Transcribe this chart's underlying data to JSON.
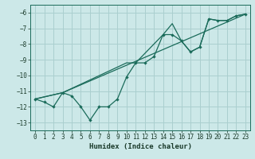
{
  "title": "",
  "xlabel": "Humidex (Indice chaleur)",
  "bg_color": "#cce8e8",
  "grid_color": "#aacfcf",
  "line_color": "#1a6b5a",
  "xlim": [
    -0.5,
    23.5
  ],
  "ylim": [
    -13.5,
    -5.5
  ],
  "xticks": [
    0,
    1,
    2,
    3,
    4,
    5,
    6,
    7,
    8,
    9,
    10,
    11,
    12,
    13,
    14,
    15,
    16,
    17,
    18,
    19,
    20,
    21,
    22,
    23
  ],
  "yticks": [
    -13,
    -12,
    -11,
    -10,
    -9,
    -8,
    -7,
    -6
  ],
  "line1_x": [
    0,
    1,
    2,
    3,
    4,
    5,
    6,
    7,
    8,
    9,
    10,
    11,
    12,
    13,
    14,
    15,
    16,
    17,
    18,
    19,
    20,
    21,
    22,
    23
  ],
  "line1_y": [
    -11.5,
    -11.7,
    -12.0,
    -11.1,
    -11.3,
    -12.0,
    -12.85,
    -12.0,
    -12.0,
    -11.5,
    -10.1,
    -9.2,
    -9.2,
    -8.8,
    -7.4,
    -7.4,
    -7.8,
    -8.5,
    -8.2,
    -6.4,
    -6.5,
    -6.5,
    -6.2,
    -6.1
  ],
  "line2_x": [
    0,
    3,
    10,
    11,
    14,
    15,
    16,
    17,
    18,
    19,
    20,
    21,
    22,
    23
  ],
  "line2_y": [
    -11.5,
    -11.1,
    -9.2,
    -9.2,
    -7.4,
    -6.7,
    -7.8,
    -8.5,
    -8.2,
    -6.4,
    -6.5,
    -6.5,
    -6.2,
    -6.1
  ],
  "line3_x": [
    0,
    3,
    23
  ],
  "line3_y": [
    -11.5,
    -11.1,
    -6.1
  ]
}
